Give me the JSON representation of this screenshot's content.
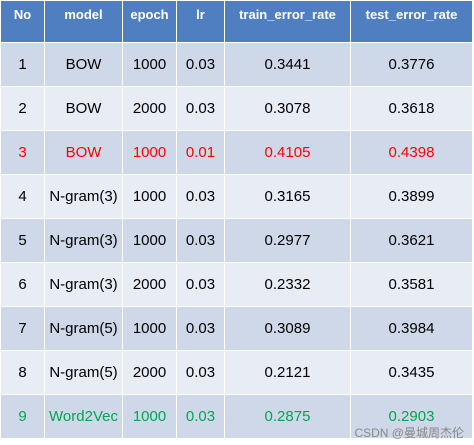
{
  "table": {
    "header": [
      "No",
      "model",
      "epoch",
      "lr",
      "train_error_rate",
      "test_error_rate"
    ],
    "header_color": "#4f7fc0",
    "row_fills": [
      "#cfd8e9",
      "#e8ecf4"
    ],
    "rows": [
      {
        "cells": [
          "1",
          "BOW",
          "1000",
          "0.03",
          "0.3441",
          "0.3776"
        ],
        "color": "#000000"
      },
      {
        "cells": [
          "2",
          "BOW",
          "2000",
          "0.03",
          "0.3078",
          "0.3618"
        ],
        "color": "#000000"
      },
      {
        "cells": [
          "3",
          "BOW",
          "1000",
          "0.01",
          "0.4105",
          "0.4398"
        ],
        "color": "#ff0000"
      },
      {
        "cells": [
          "4",
          "N-gram(3)",
          "1000",
          "0.03",
          "0.3165",
          "0.3899"
        ],
        "color": "#000000"
      },
      {
        "cells": [
          "5",
          "N-gram(3)",
          "1000",
          "0.03",
          "0.2977",
          "0.3621"
        ],
        "color": "#000000"
      },
      {
        "cells": [
          "6",
          "N-gram(3)",
          "2000",
          "0.03",
          "0.2332",
          "0.3581"
        ],
        "color": "#000000"
      },
      {
        "cells": [
          "7",
          "N-gram(5)",
          "1000",
          "0.03",
          "0.3089",
          "0.3984"
        ],
        "color": "#000000"
      },
      {
        "cells": [
          "8",
          "N-gram(5)",
          "2000",
          "0.03",
          "0.2121",
          "0.3435"
        ],
        "color": "#000000"
      },
      {
        "cells": [
          "9",
          "Word2Vec",
          "1000",
          "0.03",
          "0.2875",
          "0.2903"
        ],
        "color": "#00a650"
      }
    ]
  },
  "watermark": "CSDN @曼城周杰伦"
}
